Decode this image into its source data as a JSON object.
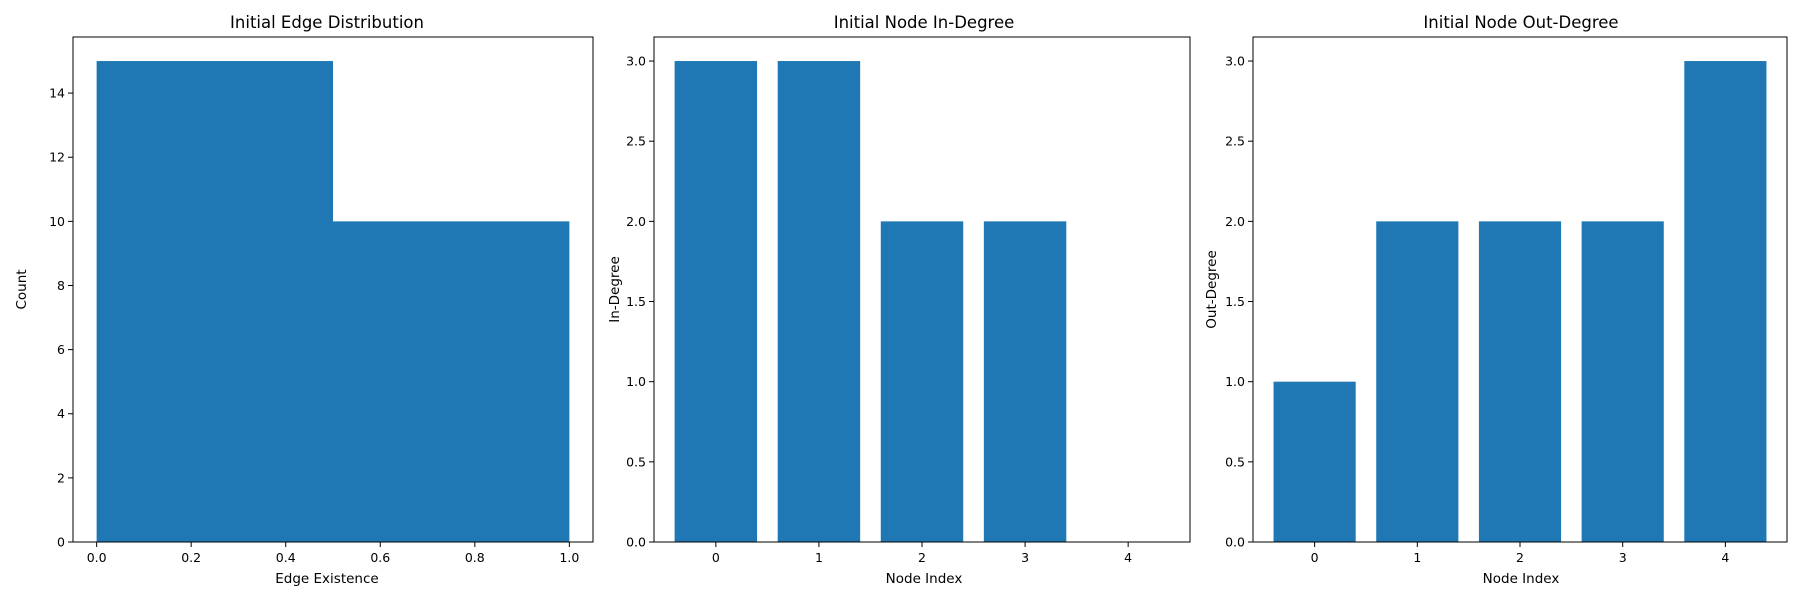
{
  "chart_data": [
    {
      "type": "bar",
      "subtype": "histogram",
      "title": "Initial Edge Distribution",
      "xlabel": "Edge Existence",
      "ylabel": "Count",
      "bins": [
        {
          "start": 0.0,
          "end": 0.5,
          "value": 15
        },
        {
          "start": 0.5,
          "end": 1.0,
          "value": 10
        }
      ],
      "xlim": [
        -0.05,
        1.05
      ],
      "ylim": [
        0,
        15.75
      ],
      "xticks": [
        "0.0",
        "0.2",
        "0.4",
        "0.6",
        "0.8",
        "1.0"
      ],
      "yticks": [
        "0",
        "2",
        "4",
        "6",
        "8",
        "10",
        "12",
        "14"
      ],
      "grid": false,
      "color": "#1f77b4"
    },
    {
      "type": "bar",
      "title": "Initial Node In-Degree",
      "xlabel": "Node Index",
      "ylabel": "In-Degree",
      "categories": [
        "0",
        "1",
        "2",
        "3",
        "4"
      ],
      "values": [
        3,
        3,
        2,
        2,
        0
      ],
      "ylim": [
        0,
        3.15
      ],
      "yticks": [
        "0.0",
        "0.5",
        "1.0",
        "1.5",
        "2.0",
        "2.5",
        "3.0"
      ],
      "grid": false,
      "color": "#1f77b4"
    },
    {
      "type": "bar",
      "title": "Initial Node Out-Degree",
      "xlabel": "Node Index",
      "ylabel": "Out-Degree",
      "categories": [
        "0",
        "1",
        "2",
        "3",
        "4"
      ],
      "values": [
        1,
        2,
        2,
        2,
        3
      ],
      "ylim": [
        0,
        3.15
      ],
      "yticks": [
        "0.0",
        "0.5",
        "1.0",
        "1.5",
        "2.0",
        "2.5",
        "3.0"
      ],
      "grid": false,
      "color": "#1f77b4"
    }
  ]
}
